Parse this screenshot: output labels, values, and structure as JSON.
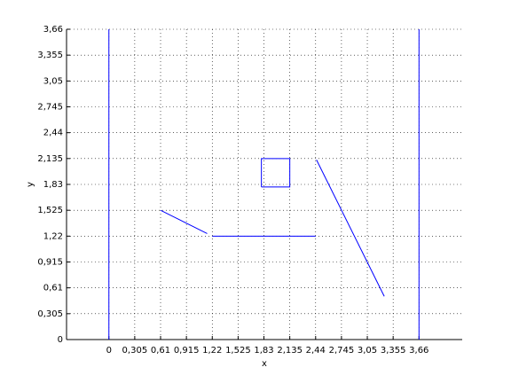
{
  "chart_data": {
    "type": "line",
    "xlabel": "x",
    "ylabel": "y",
    "xlim": [
      -0.5,
      4.17
    ],
    "ylim": [
      0,
      3.66
    ],
    "xticks": [
      0,
      {
        "value": 0.305,
        "label": "0,305"
      },
      {
        "value": 0.61,
        "label": "0,61"
      },
      {
        "value": 0.915,
        "label": "0,915"
      },
      {
        "value": 1.22,
        "label": "1,22"
      },
      {
        "value": 1.525,
        "label": "1,525"
      },
      {
        "value": 1.83,
        "label": "1,83"
      },
      {
        "value": 2.135,
        "label": "2,135"
      },
      {
        "value": 2.44,
        "label": "2,44"
      },
      {
        "value": 2.745,
        "label": "2,745"
      },
      {
        "value": 3.05,
        "label": "3,05"
      },
      {
        "value": 3.355,
        "label": "3,355"
      },
      {
        "value": 3.66,
        "label": "3,66"
      }
    ],
    "yticks": [
      0,
      {
        "value": 0.305,
        "label": "0,305"
      },
      {
        "value": 0.61,
        "label": "0,61"
      },
      {
        "value": 0.915,
        "label": "0,915"
      },
      {
        "value": 1.22,
        "label": "1,22"
      },
      {
        "value": 1.525,
        "label": "1,525"
      },
      {
        "value": 1.83,
        "label": "1,83"
      },
      {
        "value": 2.135,
        "label": "2,135"
      },
      {
        "value": 2.44,
        "label": "2,44"
      },
      {
        "value": 2.745,
        "label": "2,745"
      },
      {
        "value": 3.05,
        "label": "3,05"
      },
      {
        "value": 3.355,
        "label": "3,355"
      },
      {
        "value": 3.66,
        "label": "3,66"
      }
    ],
    "grid": true,
    "series": [
      {
        "color": "#0000ff",
        "x": [
          0,
          0
        ],
        "y": [
          0,
          3.66
        ]
      },
      {
        "color": "#0000ff",
        "x": [
          3.66,
          3.66
        ],
        "y": [
          0,
          3.66
        ]
      },
      {
        "color": "#0000ff",
        "x": [
          0.61,
          1.16
        ],
        "y": [
          1.525,
          1.25
        ]
      },
      {
        "color": "#0000ff",
        "x": [
          1.22,
          2.44
        ],
        "y": [
          1.22,
          1.22
        ]
      },
      {
        "color": "#0000ff",
        "x": [
          1.8,
          2.135,
          2.135,
          1.8,
          1.8
        ],
        "y": [
          1.8,
          1.8,
          2.135,
          2.135,
          1.8
        ]
      },
      {
        "color": "#0000ff",
        "x": [
          2.45,
          3.25
        ],
        "y": [
          2.12,
          0.51
        ]
      }
    ]
  }
}
